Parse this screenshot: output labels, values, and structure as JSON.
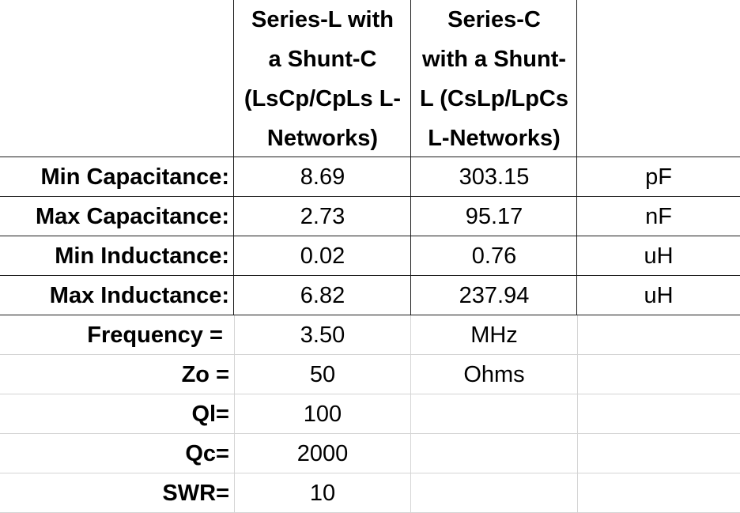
{
  "headers": {
    "col_b": [
      "Series-L with",
      "a Shunt-C",
      "(LsCp/CpLs L-",
      "Networks)"
    ],
    "col_c": [
      "Series-C",
      "with a Shunt-",
      "L (CsLp/LpCs",
      "L-Networks)"
    ]
  },
  "rows": [
    {
      "label": "Min Capacitance:",
      "b": "8.69",
      "c": "303.15",
      "d": "pF"
    },
    {
      "label": "Max Capacitance:",
      "b": "2.73",
      "c": "95.17",
      "d": "nF"
    },
    {
      "label": "Min Inductance:",
      "b": "0.02",
      "c": "0.76",
      "d": "uH"
    },
    {
      "label": "Max Inductance:",
      "b": "6.82",
      "c": "237.94",
      "d": "uH"
    },
    {
      "label": "Frequency = ",
      "b": "3.50",
      "c": "MHz",
      "d": ""
    },
    {
      "label": "Zo =",
      "b": "50",
      "c": "Ohms",
      "d": ""
    },
    {
      "label": "Ql=",
      "b": "100",
      "c": "",
      "d": ""
    },
    {
      "label": "Qc=",
      "b": "2000",
      "c": "",
      "d": ""
    },
    {
      "label": "SWR=",
      "b": "10",
      "c": "",
      "d": ""
    }
  ]
}
